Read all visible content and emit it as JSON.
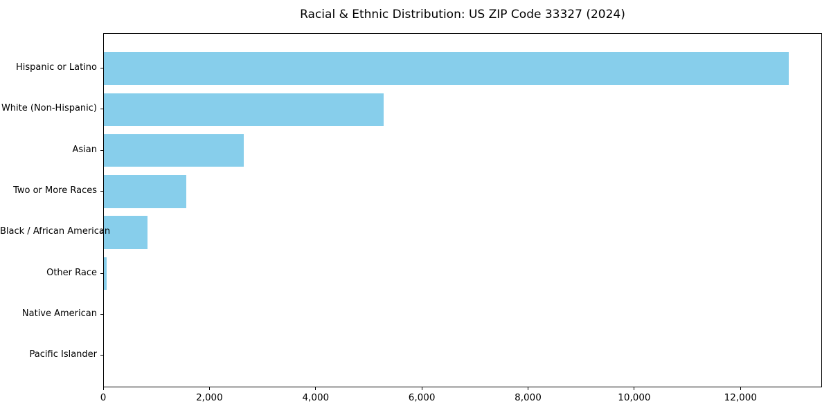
{
  "chart_data": {
    "type": "bar",
    "orientation": "horizontal",
    "title": "Racial & Ethnic Distribution: US ZIP Code 33327 (2024)",
    "categories": [
      "Hispanic or Latino",
      "White (Non-Hispanic)",
      "Asian",
      "Two or More Races",
      "Black / African American",
      "Other Race",
      "Native American",
      "Pacific Islander"
    ],
    "values": [
      12890,
      5270,
      2630,
      1550,
      815,
      55,
      0,
      0
    ],
    "xlabel": "",
    "ylabel": "",
    "xlim": [
      0,
      13535
    ],
    "xticks": [
      0,
      2000,
      4000,
      6000,
      8000,
      10000,
      12000
    ],
    "xtick_labels": [
      "0",
      "2,000",
      "4,000",
      "6,000",
      "8,000",
      "10,000",
      "12,000"
    ],
    "bar_color": "#87CEEB",
    "grid": false,
    "legend": null,
    "background_color": "#ffffff",
    "spine_color": "#000000"
  }
}
